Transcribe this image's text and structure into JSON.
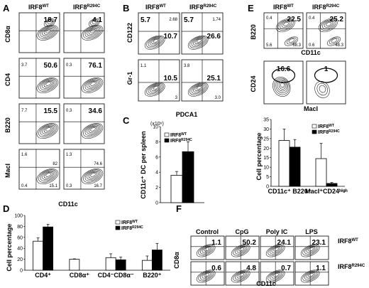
{
  "panels": {
    "A": "A",
    "B": "B",
    "C": "C",
    "D": "D",
    "E": "E",
    "F": "F"
  },
  "genotypes": {
    "wt": "IRF8",
    "wt_sup": "WT",
    "mut": "IRF8",
    "mut_sup": "R294C"
  },
  "A": {
    "xlabel": "CD11c",
    "rows": [
      {
        "ylabel": "CD8α",
        "wt": {
          "big": "18.7",
          "small": []
        },
        "mut": {
          "big": "4.1",
          "small": []
        }
      },
      {
        "ylabel": "CD4",
        "wt": {
          "big": "50.6",
          "small": [
            "3.7"
          ]
        },
        "mut": {
          "big": "76.1",
          "small": [
            "0.3"
          ]
        }
      },
      {
        "ylabel": "B220",
        "wt": {
          "big": "15.5",
          "small": [
            "7.7"
          ]
        },
        "mut": {
          "big": "34.6",
          "small": [
            "0.3"
          ]
        }
      },
      {
        "ylabel": "MacI",
        "wt": {
          "big": "",
          "small": [
            "1.6",
            "82",
            "0.4",
            "15.1"
          ]
        },
        "mut": {
          "big": "",
          "small": [
            "1.3",
            "74.6",
            "0.3",
            "16.7"
          ]
        }
      }
    ]
  },
  "B": {
    "xlabel": "PDCA1",
    "rows": [
      {
        "ylabel": "CD122",
        "wt": [
          "5.7",
          "2.68",
          "10.7"
        ],
        "mut": [
          "5.7",
          "1.74",
          "26.6"
        ]
      },
      {
        "ylabel": "Gr-1",
        "wt": [
          "1.1",
          "10.5",
          "3"
        ],
        "mut": [
          "3.8",
          "25.1",
          "3.0"
        ]
      }
    ]
  },
  "C": {
    "scale": "(x10⁶)",
    "ylabel": "CD11c⁺ DC per spleen"
  },
  "D": {
    "ylabel": "Cell percentage"
  },
  "E": {
    "flow_xlabel_top": "CD11c",
    "flow_xlabel_bottom": "MacI",
    "top_ylabel": "B220",
    "bottom_ylabel": "CD24",
    "top": {
      "wt": [
        "0.4",
        "22.5",
        "5.6",
        "68.3"
      ],
      "mut": [
        "0.4",
        "25.2",
        "0.6",
        "48.3"
      ]
    },
    "bottom": {
      "wt": "16.6",
      "mut": "1"
    },
    "bar_ylabel": "Cell percentage"
  },
  "F": {
    "ylabel": "CD8α",
    "xlabel": "CD11c",
    "conditions": [
      "Control",
      "CpG",
      "Poly IC",
      "LPS"
    ],
    "wt": [
      "1.1",
      "50.2",
      "24.1",
      "23.1"
    ],
    "mut": [
      "0.6",
      "4.8",
      "0.7",
      "1.1"
    ]
  },
  "chart_data": [
    {
      "type": "bar",
      "panel": "C",
      "ylabel": "CD11c⁺ DC per spleen",
      "yscale": "x10⁶",
      "ylim": [
        0,
        10
      ],
      "yticks": [
        0,
        2,
        4,
        6,
        8,
        10
      ],
      "series": [
        {
          "name": "IRF8WT",
          "values": [
            3.6
          ],
          "errors": [
            0.5
          ]
        },
        {
          "name": "IRF8R294C",
          "values": [
            6.7
          ],
          "errors": [
            1.3
          ]
        }
      ]
    },
    {
      "type": "bar",
      "panel": "D",
      "ylabel": "Cell percentage",
      "ylim": [
        0,
        100
      ],
      "yticks": [
        0,
        20,
        40,
        60,
        80,
        100
      ],
      "categories": [
        "CD4⁺",
        "CD8α⁺",
        "CD4⁻CD8α⁻",
        "B220⁺"
      ],
      "series": [
        {
          "name": "IRF8WT",
          "values": [
            53,
            20,
            23,
            18
          ],
          "errors": [
            6,
            0.8,
            7,
            8
          ]
        },
        {
          "name": "IRF8R294C",
          "values": [
            79,
            0,
            19,
            37
          ],
          "errors": [
            5,
            0,
            5,
            12
          ]
        }
      ]
    },
    {
      "type": "bar",
      "panel": "E",
      "ylabel": "Cell percentage",
      "ylim": [
        0,
        35
      ],
      "yticks": [
        0,
        5,
        10,
        15,
        20,
        25,
        30,
        35
      ],
      "categories": [
        "CD11c⁺ B220⁺",
        "MacI⁺CD24ʰⁱᵍʰ"
      ],
      "series": [
        {
          "name": "IRF8WT",
          "values": [
            24,
            14.5
          ],
          "errors": [
            6,
            8
          ]
        },
        {
          "name": "IRF8R294C",
          "values": [
            20.5,
            1.5
          ],
          "errors": [
            4,
            0.5
          ]
        }
      ]
    }
  ]
}
